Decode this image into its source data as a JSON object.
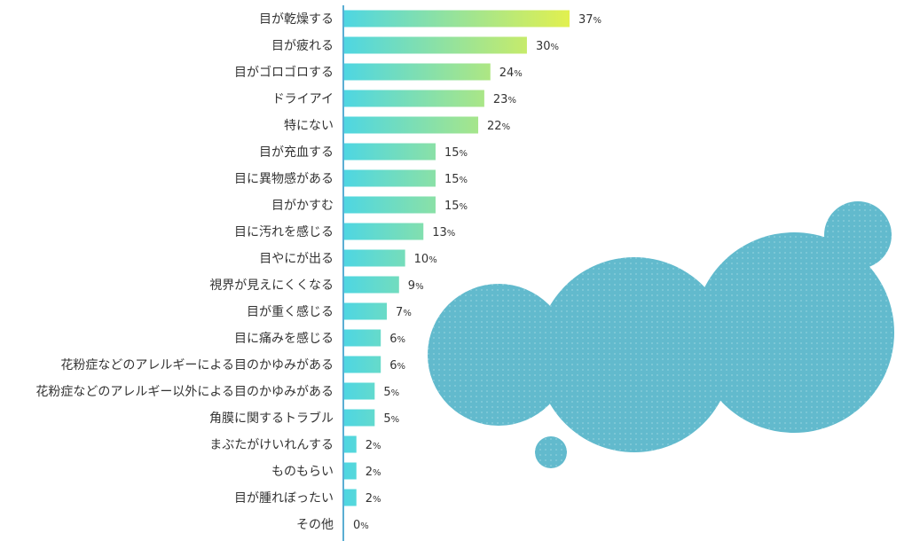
{
  "chart_data": {
    "type": "bar",
    "orientation": "horizontal",
    "categories": [
      "目が乾燥する",
      "目が疲れる",
      "目がゴロゴロする",
      "ドライアイ",
      "特にない",
      "目が充血する",
      "目に異物感がある",
      "目がかすむ",
      "目に汚れを感じる",
      "目やにが出る",
      "視界が見えにくくなる",
      "目が重く感じる",
      "目に痛みを感じる",
      "花粉症などのアレルギーによる目のかゆみがある",
      "花粉症などのアレルギー以外による目のかゆみがある",
      "角膜に関するトラブル",
      "まぶたがけいれんする",
      "ものもらい",
      "目が腫れぼったい",
      "その他"
    ],
    "values": [
      37,
      30,
      24,
      23,
      22,
      15,
      15,
      15,
      13,
      10,
      9,
      7,
      6,
      6,
      5,
      5,
      2,
      2,
      2,
      0
    ],
    "value_unit": "%",
    "xlim": [
      0,
      37
    ],
    "title": "",
    "xlabel": "",
    "ylabel": "",
    "grid": false,
    "legend": "none",
    "colors": {
      "bar_low": "#4ed6e2",
      "bar_high": "#e2f04f",
      "axis": "#5aaed3",
      "text": "#333333",
      "decoration": "#62bacd"
    }
  }
}
